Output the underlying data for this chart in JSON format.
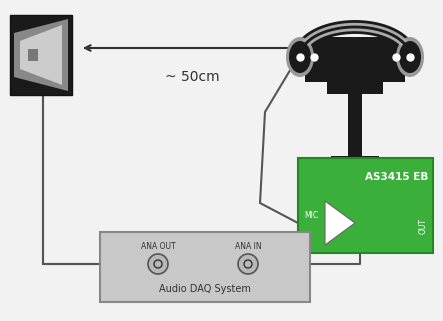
{
  "bg_color": "#f2f2f2",
  "arrow_label": "~ 50cm",
  "ana_out_label": "ANA OUT",
  "ana_in_label": "ANA IN",
  "daq_label": "Audio DAQ System",
  "eb_label": "AS3415 EB",
  "mic_label": "MIC",
  "out_label": "OUT",
  "wire_color": "#555555",
  "speaker_color": "#1a1a1a",
  "cone_outer": "#888888",
  "cone_inner": "#cccccc",
  "headphone_color": "#1a1a1a",
  "headphone_ear_color": "#999999",
  "green_box": "#3aaf3a",
  "daq_box_color": "#c8c8c8",
  "daq_edge_color": "#888888"
}
